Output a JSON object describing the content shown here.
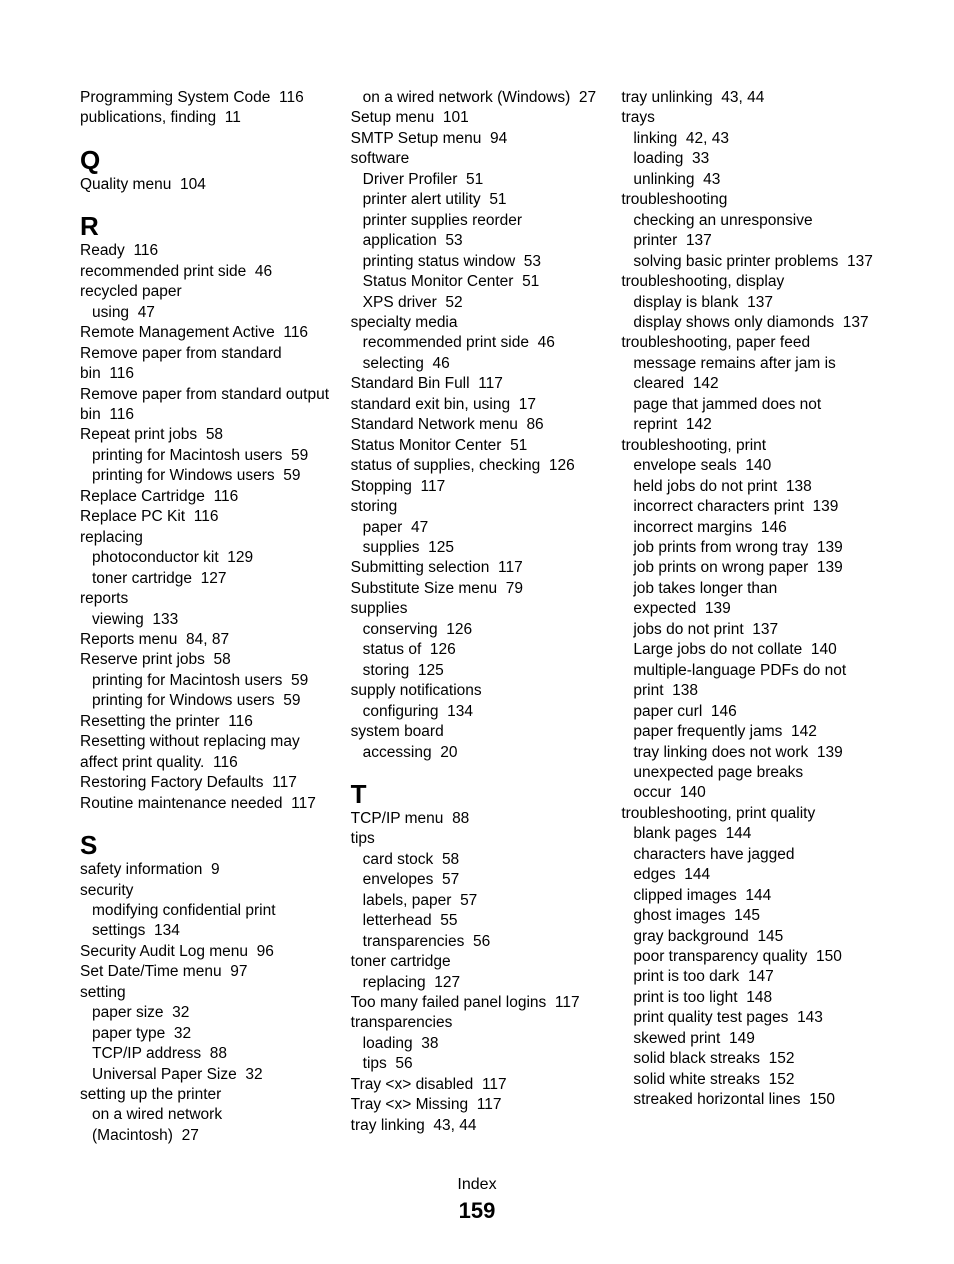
{
  "footer_label": "Index",
  "page_number": "159",
  "columns": [
    {
      "blocks": [
        {
          "entries": [
            {
              "text": "Programming System Code",
              "page": "116",
              "indent": 0
            },
            {
              "text": "publications, finding",
              "page": "11",
              "indent": 0
            }
          ]
        },
        {
          "letter": "Q",
          "entries": [
            {
              "text": "Quality menu",
              "page": "104",
              "indent": 0
            }
          ]
        },
        {
          "letter": "R",
          "entries": [
            {
              "text": "Ready",
              "page": "116",
              "indent": 0
            },
            {
              "text": "recommended print side",
              "page": "46",
              "indent": 0
            },
            {
              "text": "recycled paper",
              "indent": 0
            },
            {
              "text": "using",
              "page": "47",
              "indent": 1
            },
            {
              "text": "Remote Management Active",
              "page": "116",
              "indent": 0
            },
            {
              "text": "Remove paper from standard bin",
              "page": "116",
              "indent": 0
            },
            {
              "text": "Remove paper from standard output bin",
              "page": "116",
              "indent": 0
            },
            {
              "text": "Repeat print jobs",
              "page": "58",
              "indent": 0
            },
            {
              "text": "printing for Macintosh users",
              "page": "59",
              "indent": 1
            },
            {
              "text": "printing for Windows users",
              "page": "59",
              "indent": 1
            },
            {
              "text": "Replace Cartridge",
              "page": "116",
              "indent": 0
            },
            {
              "text": "Replace PC Kit",
              "page": "116",
              "indent": 0
            },
            {
              "text": "replacing",
              "indent": 0
            },
            {
              "text": "photoconductor kit",
              "page": "129",
              "indent": 1
            },
            {
              "text": "toner cartridge",
              "page": "127",
              "indent": 1
            },
            {
              "text": "reports",
              "indent": 0
            },
            {
              "text": "viewing",
              "page": "133",
              "indent": 1
            },
            {
              "text": "Reports menu",
              "page": "84, 87",
              "indent": 0
            },
            {
              "text": "Reserve print jobs",
              "page": "58",
              "indent": 0
            },
            {
              "text": "printing for Macintosh users",
              "page": "59",
              "indent": 1
            },
            {
              "text": "printing for Windows users",
              "page": "59",
              "indent": 1
            },
            {
              "text": "Resetting the printer",
              "page": "116",
              "indent": 0
            },
            {
              "text": "Resetting without replacing may affect print quality.",
              "page": "116",
              "indent": 0
            },
            {
              "text": "Restoring Factory Defaults",
              "page": "117",
              "indent": 0
            },
            {
              "text": "Routine maintenance needed",
              "page": "117",
              "indent": 0
            }
          ]
        },
        {
          "letter": "S",
          "entries": [
            {
              "text": "safety information",
              "page": "9",
              "indent": 0
            },
            {
              "text": "security",
              "indent": 0
            },
            {
              "text": "modifying confidential print settings",
              "page": "134",
              "indent": 1
            },
            {
              "text": "Security Audit Log menu",
              "page": "96",
              "indent": 0
            },
            {
              "text": "Set Date/Time menu",
              "page": "97",
              "indent": 0
            },
            {
              "text": "setting",
              "indent": 0
            },
            {
              "text": "paper size",
              "page": "32",
              "indent": 1
            },
            {
              "text": "paper type",
              "page": "32",
              "indent": 1
            },
            {
              "text": "TCP/IP address",
              "page": "88",
              "indent": 1
            },
            {
              "text": "Universal Paper Size",
              "page": "32",
              "indent": 1
            },
            {
              "text": "setting up the printer",
              "indent": 0
            },
            {
              "text": "on a wired network (Macintosh)",
              "page": "27",
              "indent": 1
            }
          ]
        }
      ]
    },
    {
      "blocks": [
        {
          "entries": [
            {
              "text": "on a wired network (Windows)",
              "page": "27",
              "indent": 1
            },
            {
              "text": "Setup menu",
              "page": "101",
              "indent": 0
            },
            {
              "text": "SMTP Setup menu",
              "page": "94",
              "indent": 0
            },
            {
              "text": "software",
              "indent": 0
            },
            {
              "text": "Driver Profiler",
              "page": "51",
              "indent": 1
            },
            {
              "text": "printer alert utility",
              "page": "51",
              "indent": 1
            },
            {
              "text": "printer supplies reorder application",
              "page": "53",
              "indent": 1
            },
            {
              "text": "printing status window",
              "page": "53",
              "indent": 1
            },
            {
              "text": "Status Monitor Center",
              "page": "51",
              "indent": 1
            },
            {
              "text": "XPS driver",
              "page": "52",
              "indent": 1
            },
            {
              "text": "specialty media",
              "indent": 0
            },
            {
              "text": "recommended print side",
              "page": "46",
              "indent": 1
            },
            {
              "text": "selecting",
              "page": "46",
              "indent": 1
            },
            {
              "text": "Standard Bin Full",
              "page": "117",
              "indent": 0
            },
            {
              "text": "standard exit bin, using",
              "page": "17",
              "indent": 0
            },
            {
              "text": "Standard Network menu",
              "page": "86",
              "indent": 0
            },
            {
              "text": "Status Monitor Center",
              "page": "51",
              "indent": 0
            },
            {
              "text": "status of supplies, checking",
              "page": "126",
              "indent": 0
            },
            {
              "text": "Stopping",
              "page": "117",
              "indent": 0
            },
            {
              "text": "storing",
              "indent": 0
            },
            {
              "text": "paper",
              "page": "47",
              "indent": 1
            },
            {
              "text": "supplies",
              "page": "125",
              "indent": 1
            },
            {
              "text": "Submitting selection",
              "page": "117",
              "indent": 0
            },
            {
              "text": "Substitute Size menu",
              "page": "79",
              "indent": 0
            },
            {
              "text": "supplies",
              "indent": 0
            },
            {
              "text": "conserving",
              "page": "126",
              "indent": 1
            },
            {
              "text": "status of",
              "page": "126",
              "indent": 1
            },
            {
              "text": "storing",
              "page": "125",
              "indent": 1
            },
            {
              "text": "supply notifications",
              "indent": 0
            },
            {
              "text": "configuring",
              "page": "134",
              "indent": 1
            },
            {
              "text": "system board",
              "indent": 0
            },
            {
              "text": "accessing",
              "page": "20",
              "indent": 1
            }
          ]
        },
        {
          "letter": "T",
          "entries": [
            {
              "text": "TCP/IP menu",
              "page": "88",
              "indent": 0
            },
            {
              "text": "tips",
              "indent": 0
            },
            {
              "text": "card stock",
              "page": "58",
              "indent": 1
            },
            {
              "text": "envelopes",
              "page": "57",
              "indent": 1
            },
            {
              "text": "labels, paper",
              "page": "57",
              "indent": 1
            },
            {
              "text": "letterhead",
              "page": "55",
              "indent": 1
            },
            {
              "text": "transparencies",
              "page": "56",
              "indent": 1
            },
            {
              "text": "toner cartridge",
              "indent": 0
            },
            {
              "text": "replacing",
              "page": "127",
              "indent": 1
            },
            {
              "text": "Too many failed panel logins",
              "page": "117",
              "indent": 0
            },
            {
              "text": "transparencies",
              "indent": 0
            },
            {
              "text": "loading",
              "page": "38",
              "indent": 1
            },
            {
              "text": "tips",
              "page": "56",
              "indent": 1
            },
            {
              "text": "Tray <x> disabled",
              "page": "117",
              "indent": 0
            },
            {
              "text": "Tray <x> Missing",
              "page": "117",
              "indent": 0
            },
            {
              "text": "tray linking",
              "page": "43, 44",
              "indent": 0
            }
          ]
        }
      ]
    },
    {
      "blocks": [
        {
          "entries": [
            {
              "text": "tray unlinking",
              "page": "43, 44",
              "indent": 0
            },
            {
              "text": "trays",
              "indent": 0
            },
            {
              "text": "linking",
              "page": "42, 43",
              "indent": 1
            },
            {
              "text": "loading",
              "page": "33",
              "indent": 1
            },
            {
              "text": "unlinking",
              "page": "43",
              "indent": 1
            },
            {
              "text": "troubleshooting",
              "indent": 0
            },
            {
              "text": "checking an unresponsive printer",
              "page": "137",
              "indent": 1
            },
            {
              "text": "solving basic printer problems",
              "page": "137",
              "indent": 1
            },
            {
              "text": "troubleshooting, display",
              "indent": 0
            },
            {
              "text": "display is blank",
              "page": "137",
              "indent": 1
            },
            {
              "text": "display shows only diamonds",
              "page": "137",
              "indent": 1
            },
            {
              "text": "troubleshooting, paper feed",
              "indent": 0
            },
            {
              "text": "message remains after jam is cleared",
              "page": "142",
              "indent": 1
            },
            {
              "text": "page that jammed does not reprint",
              "page": "142",
              "indent": 1
            },
            {
              "text": "troubleshooting, print",
              "indent": 0
            },
            {
              "text": "envelope seals",
              "page": "140",
              "indent": 1
            },
            {
              "text": "held jobs do not print",
              "page": "138",
              "indent": 1
            },
            {
              "text": "incorrect characters print",
              "page": "139",
              "indent": 1
            },
            {
              "text": "incorrect margins",
              "page": "146",
              "indent": 1
            },
            {
              "text": "job prints from wrong tray",
              "page": "139",
              "indent": 1
            },
            {
              "text": "job prints on wrong paper",
              "page": "139",
              "indent": 1
            },
            {
              "text": "job takes longer than expected",
              "page": "139",
              "indent": 1
            },
            {
              "text": "jobs do not print",
              "page": "137",
              "indent": 1
            },
            {
              "text": "Large jobs do not collate",
              "page": "140",
              "indent": 1
            },
            {
              "text": "multiple-language PDFs do not print",
              "page": "138",
              "indent": 1
            },
            {
              "text": "paper curl",
              "page": "146",
              "indent": 1
            },
            {
              "text": "paper frequently jams",
              "page": "142",
              "indent": 1
            },
            {
              "text": "tray linking does not work",
              "page": "139",
              "indent": 1
            },
            {
              "text": "unexpected page breaks occur",
              "page": "140",
              "indent": 1
            },
            {
              "text": "troubleshooting, print quality",
              "indent": 0
            },
            {
              "text": "blank pages",
              "page": "144",
              "indent": 1
            },
            {
              "text": "characters have jagged edges",
              "page": "144",
              "indent": 1
            },
            {
              "text": "clipped images",
              "page": "144",
              "indent": 1
            },
            {
              "text": "ghost images",
              "page": "145",
              "indent": 1
            },
            {
              "text": "gray background",
              "page": "145",
              "indent": 1
            },
            {
              "text": "poor transparency quality",
              "page": "150",
              "indent": 1
            },
            {
              "text": "print is too dark",
              "page": "147",
              "indent": 1
            },
            {
              "text": "print is too light",
              "page": "148",
              "indent": 1
            },
            {
              "text": "print quality test pages",
              "page": "143",
              "indent": 1
            },
            {
              "text": "skewed print",
              "page": "149",
              "indent": 1
            },
            {
              "text": "solid black streaks",
              "page": "152",
              "indent": 1
            },
            {
              "text": "solid white streaks",
              "page": "152",
              "indent": 1
            },
            {
              "text": "streaked horizontal lines",
              "page": "150",
              "indent": 1
            }
          ]
        }
      ]
    }
  ]
}
